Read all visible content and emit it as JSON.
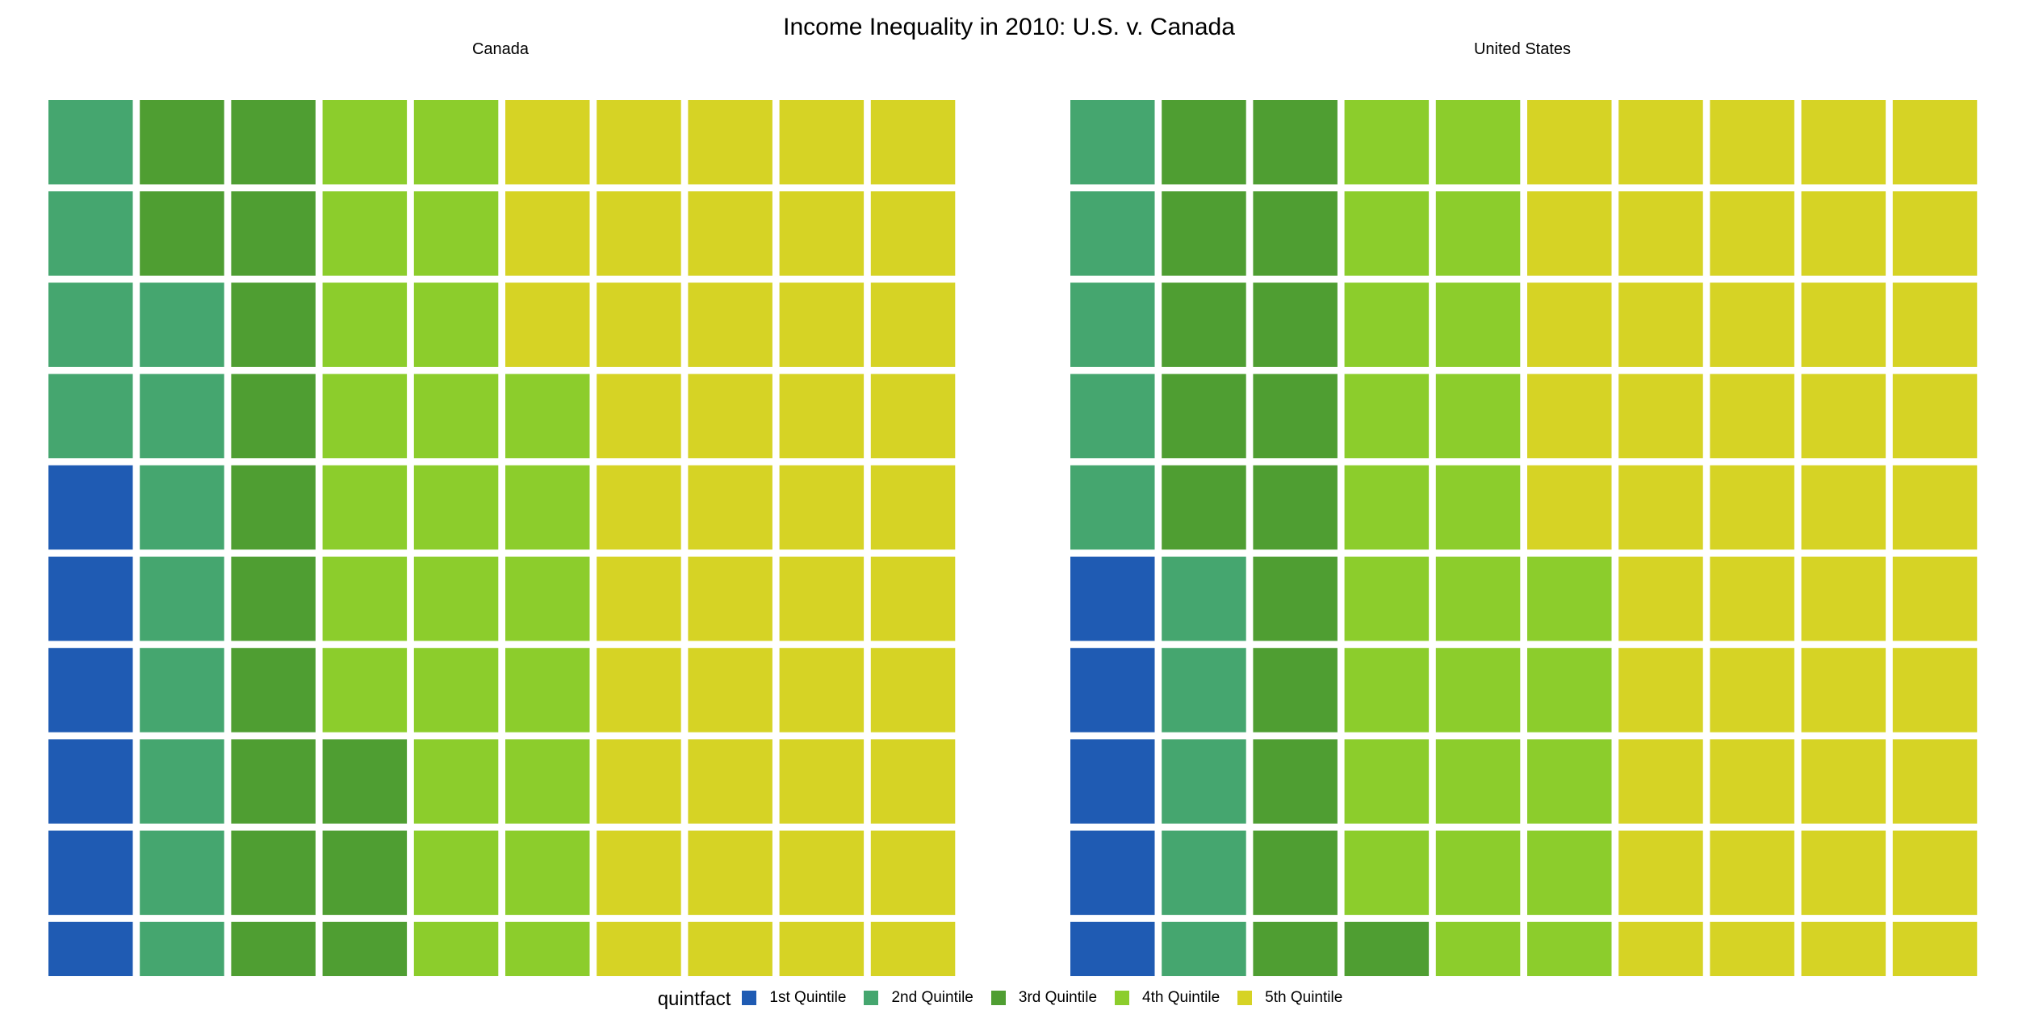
{
  "chart_data": {
    "type": "waffle",
    "title": "Income Inequality in 2010: U.S. v. Canada",
    "legend": {
      "title": "quintfact",
      "position": "bottom",
      "entries": [
        "1st Quintile",
        "2nd Quintile",
        "3rd Quintile",
        "4th Quintile",
        "5th Quintile"
      ]
    },
    "colors": {
      "1st Quintile": "#1f5bb3",
      "2nd Quintile": "#45a66f",
      "3rd Quintile": "#4f9e32",
      "4th Quintile": "#8ccd2c",
      "5th Quintile": "#d6d325"
    },
    "grid": {
      "rows": 10,
      "cols": 10,
      "fill_order": "column-wise, bottom to top"
    },
    "panels": [
      {
        "name": "Canada",
        "values": {
          "1st Quintile": 6,
          "2nd Quintile": 12,
          "3rd Quintile": 15,
          "4th Quintile": 24,
          "5th Quintile": 43
        }
      },
      {
        "name": "United States",
        "values": {
          "1st Quintile": 5,
          "2nd Quintile": 10,
          "3rd Quintile": 16,
          "4th Quintile": 24,
          "5th Quintile": 45
        }
      }
    ]
  }
}
